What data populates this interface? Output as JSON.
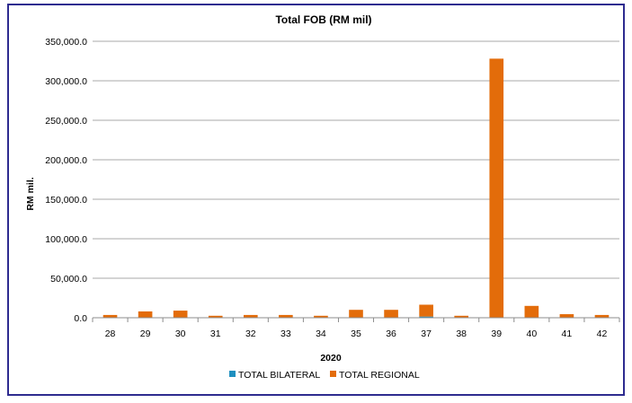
{
  "chart_data": {
    "type": "bar",
    "stacked": true,
    "title": "Total FOB (RM mil)",
    "xlabel": "2020",
    "ylabel": "RM mil.",
    "categories": [
      "28",
      "29",
      "30",
      "31",
      "32",
      "33",
      "34",
      "35",
      "36",
      "37",
      "38",
      "39",
      "40",
      "41",
      "42"
    ],
    "series": [
      {
        "name": "TOTAL BILATERAL",
        "color": "#1f8fbf",
        "values": [
          300,
          500,
          500,
          200,
          300,
          300,
          200,
          500,
          500,
          1500,
          200,
          500,
          500,
          300,
          300
        ]
      },
      {
        "name": "TOTAL REGIONAL",
        "color": "#e36c0a",
        "values": [
          3200,
          7500,
          8500,
          2300,
          3200,
          3200,
          2300,
          9500,
          9500,
          15000,
          2300,
          327500,
          14500,
          4200,
          3200
        ]
      }
    ],
    "ylim": [
      0,
      350000
    ],
    "yticks": [
      "0.0",
      "50,000.0",
      "100,000.0",
      "150,000.0",
      "200,000.0",
      "250,000.0",
      "300,000.0",
      "350,000.0"
    ],
    "grid": true,
    "legend": "bottom"
  }
}
